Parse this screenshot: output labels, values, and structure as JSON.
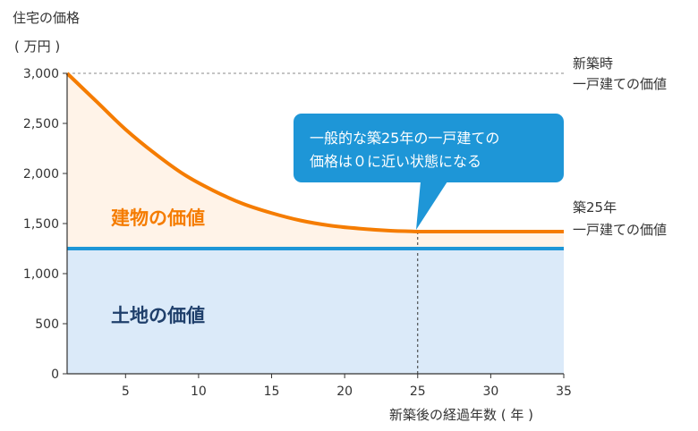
{
  "chart_data": {
    "type": "area",
    "ylabel_line1": "住宅の価格",
    "ylabel_line2": "( 万円 )",
    "xlabel": "新築後の経過年数 ( 年 )",
    "x_ticks": [
      "5",
      "10",
      "15",
      "20",
      "25",
      "30",
      "35"
    ],
    "y_ticks": [
      "0",
      "500",
      "1,000",
      "1,500",
      "2,000",
      "2,500",
      "3,000"
    ],
    "xlim": [
      1,
      35
    ],
    "ylim": [
      0,
      3000
    ],
    "grid": false,
    "series": [
      {
        "name": "建物の価値",
        "color": "#f57c00",
        "fill": "#fff3e8",
        "x": [
          1,
          3,
          5,
          7,
          9,
          11,
          13,
          15,
          17,
          19,
          21,
          23,
          25,
          35
        ],
        "values": [
          3000,
          2720,
          2440,
          2200,
          1990,
          1830,
          1700,
          1605,
          1530,
          1480,
          1450,
          1430,
          1420,
          1420
        ]
      },
      {
        "name": "土地の価値",
        "color": "#1e96d7",
        "fill": "#dbeaf9",
        "x": [
          1,
          35
        ],
        "values": [
          1250,
          1250
        ]
      }
    ],
    "reference_line": {
      "y": 3000,
      "label_line1": "新築時",
      "label_line2": "一戸建ての価値"
    },
    "marker": {
      "x": 25,
      "label_line1": "築25年",
      "label_line2": "一戸建ての価値"
    },
    "callout": {
      "line1": "一般的な築25年の一戸建ての",
      "line2": "価格は０に近い状態になる",
      "color": "#1e96d7"
    },
    "area_labels": {
      "building": "建物の価値",
      "land": "土地の価値"
    },
    "colors": {
      "building_text": "#f57c00",
      "land_text": "#1f3f6b",
      "axis": "#333333",
      "dashed": "#888888"
    }
  }
}
